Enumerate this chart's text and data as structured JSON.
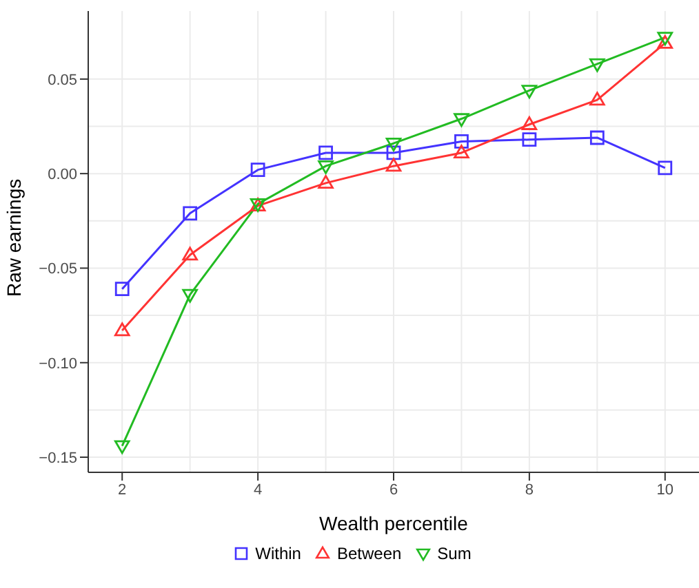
{
  "chart_data": {
    "type": "line",
    "xlabel": "Wealth percentile",
    "ylabel": "Raw earnings",
    "x": [
      2,
      3,
      4,
      5,
      6,
      7,
      8,
      9,
      10
    ],
    "series": [
      {
        "name": "Within",
        "color": "#4433ff",
        "marker": "square",
        "values": [
          -0.061,
          -0.021,
          0.002,
          0.011,
          0.011,
          0.017,
          0.018,
          0.019,
          0.003
        ]
      },
      {
        "name": "Between",
        "color": "#ff3333",
        "marker": "triangle",
        "values": [
          -0.083,
          -0.043,
          -0.017,
          -0.005,
          0.004,
          0.011,
          0.026,
          0.039,
          0.069
        ]
      },
      {
        "name": "Sum",
        "color": "#22bb22",
        "marker": "triangle-down",
        "values": [
          -0.144,
          -0.064,
          -0.016,
          0.004,
          0.016,
          0.029,
          0.044,
          0.058,
          0.072
        ]
      }
    ],
    "xlim": [
      1.5,
      10.5
    ],
    "xticks": [
      2,
      4,
      6,
      8,
      10
    ],
    "ylim": [
      -0.158,
      0.086
    ],
    "yticks": [
      {
        "value": -0.15,
        "label": "−0.15"
      },
      {
        "value": -0.1,
        "label": "−0.10"
      },
      {
        "value": -0.05,
        "label": "−0.05"
      },
      {
        "value": 0,
        "label": "0.00"
      },
      {
        "value": 0.05,
        "label": "0.05"
      }
    ],
    "grid": true,
    "legend": "bottom",
    "line_style": "solid"
  }
}
